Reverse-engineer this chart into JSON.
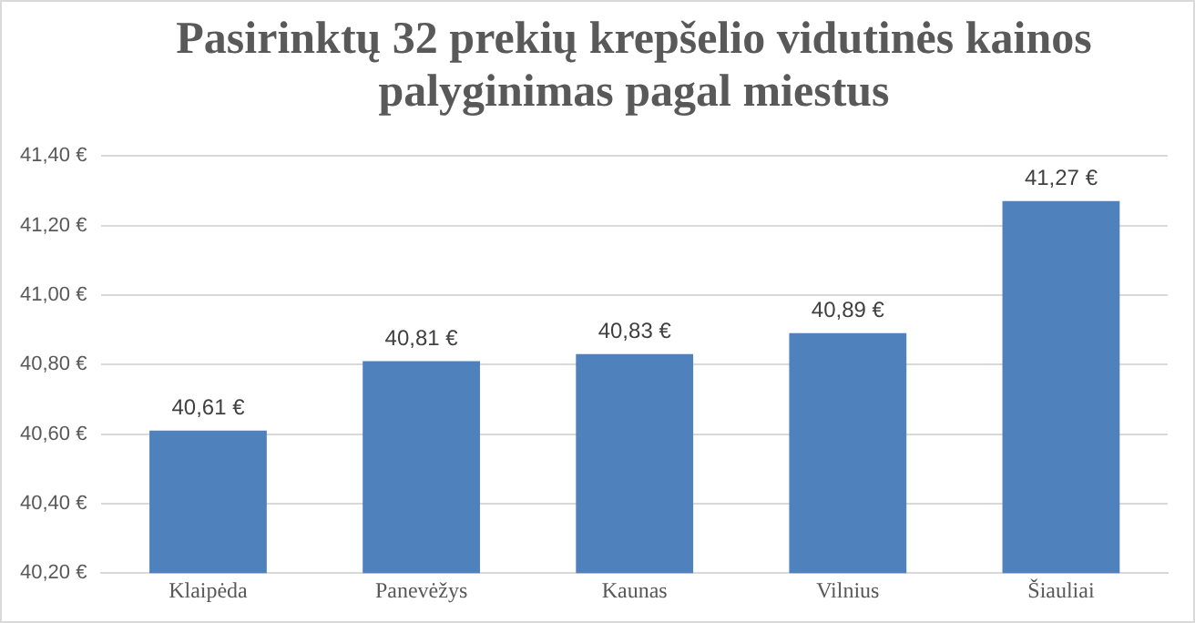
{
  "chart_data": {
    "type": "bar",
    "title": "Pasirinktų 32 prekių krepšelio vidutinės kainos palyginimas pagal miestus",
    "categories": [
      "Klaipėda",
      "Panevėžys",
      "Kaunas",
      "Vilnius",
      "Šiauliai"
    ],
    "values": [
      40.61,
      40.81,
      40.83,
      40.89,
      41.27
    ],
    "value_labels": [
      "40,61 €",
      "40,81 €",
      "40,83 €",
      "40,89 €",
      "41,27 €"
    ],
    "color": "#4f81bd",
    "ylim": [
      40.2,
      41.4
    ],
    "yticks": [
      {
        "value": 40.2,
        "label": "40,20 €"
      },
      {
        "value": 40.4,
        "label": "40,40 €"
      },
      {
        "value": 40.6,
        "label": "40,60 €"
      },
      {
        "value": 40.8,
        "label": "40,80 €"
      },
      {
        "value": 41.0,
        "label": "41,00 €"
      },
      {
        "value": 41.2,
        "label": "41,20 €"
      },
      {
        "value": 41.4,
        "label": "41,40 €"
      }
    ],
    "grid": "y"
  }
}
